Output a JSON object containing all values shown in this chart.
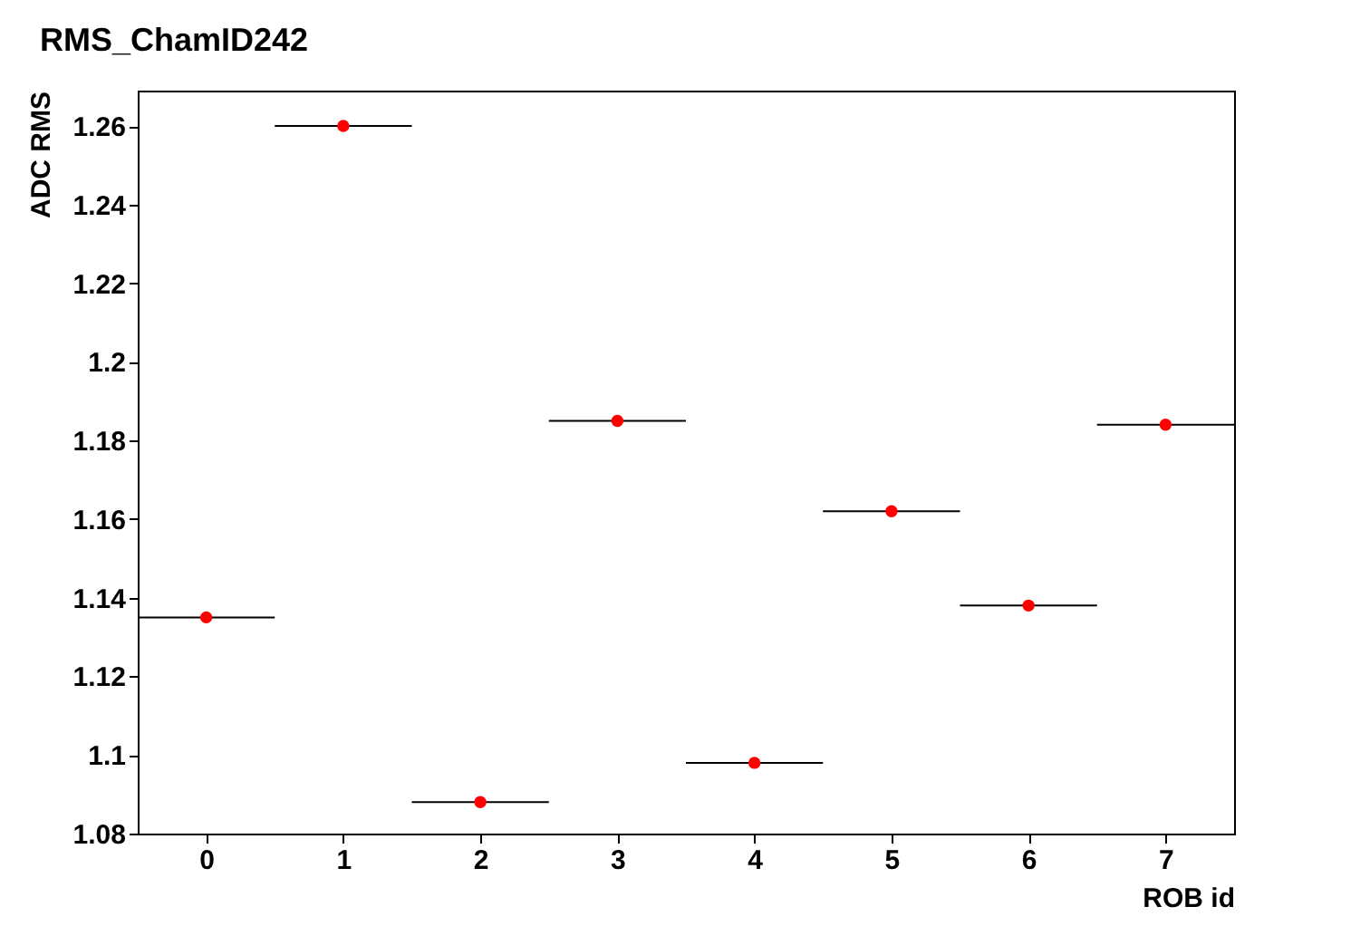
{
  "chart_data": {
    "type": "scatter",
    "title": "RMS_ChamID242",
    "xlabel": "ROB id",
    "ylabel": "ADC RMS",
    "x": [
      0,
      1,
      2,
      3,
      4,
      5,
      6,
      7
    ],
    "series": [
      {
        "color": "#ff0000",
        "values": [
          1.135,
          1.26,
          1.088,
          1.185,
          1.098,
          1.162,
          1.138,
          1.184
        ],
        "xerrors": [
          0.5,
          0.5,
          0.5,
          0.5,
          0.5,
          0.5,
          0.5,
          0.5
        ]
      }
    ],
    "xlim": [
      -0.5,
      7.5
    ],
    "xticks": [
      0,
      1,
      2,
      3,
      4,
      5,
      6,
      7
    ],
    "ylim": [
      1.08,
      1.269
    ],
    "yticks": [
      1.08,
      1.1,
      1.12,
      1.14,
      1.16,
      1.18,
      1.2,
      1.22,
      1.24,
      1.26
    ],
    "marker": "circle",
    "grid": false
  }
}
